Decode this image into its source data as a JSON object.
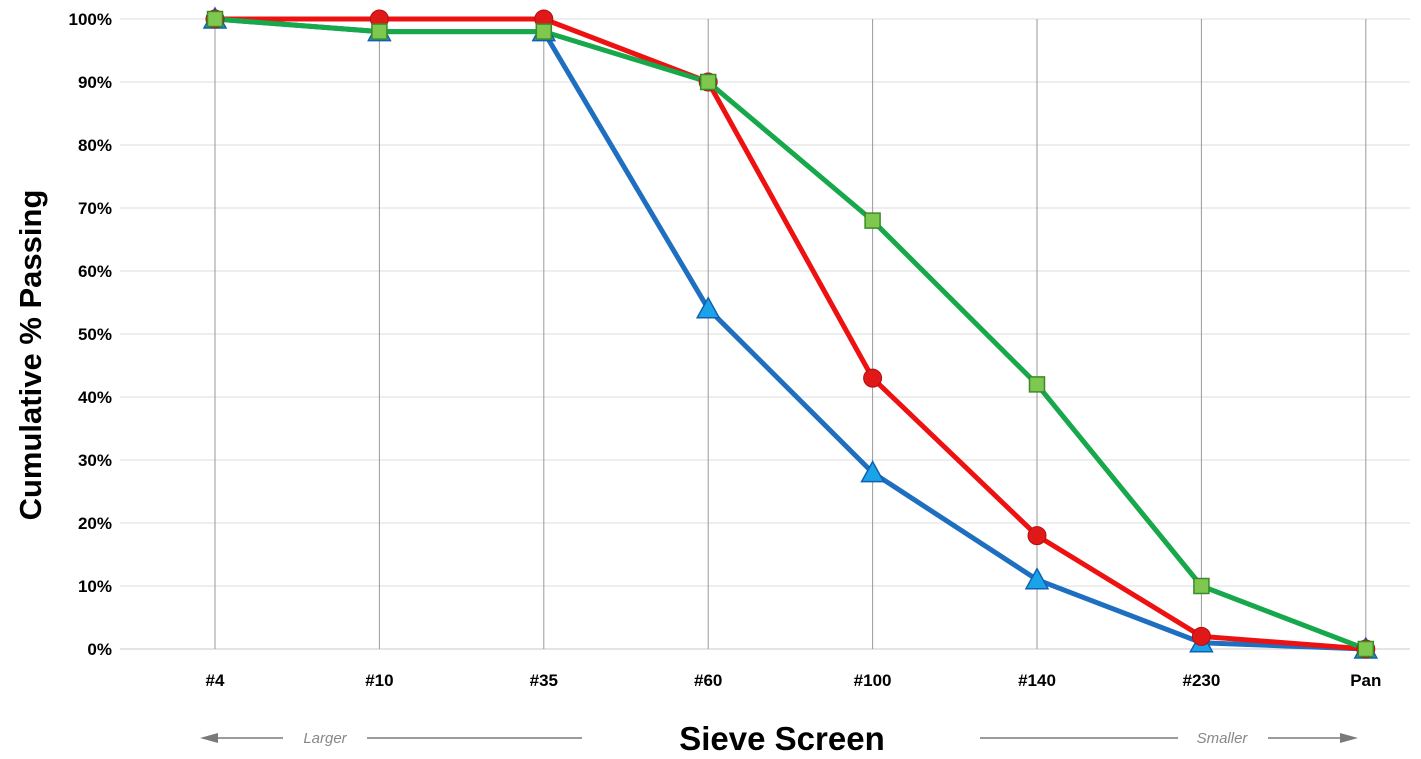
{
  "chart_data": {
    "type": "line",
    "title": "",
    "xlabel": "Sieve Screen",
    "ylabel": "Cumulative % Passing",
    "categories": [
      "#4",
      "#10",
      "#35",
      "#60",
      "#100",
      "#140",
      "#230",
      "Pan"
    ],
    "ylim": [
      0,
      100
    ],
    "yticks": [
      0,
      10,
      20,
      30,
      40,
      50,
      60,
      70,
      80,
      90,
      100
    ],
    "ytick_suffix": "%",
    "grid": "horizontal gridlines and vertical lines at each sieve",
    "legend": "none",
    "direction_hints": {
      "left": "Larger",
      "right": "Smaller"
    },
    "series": [
      {
        "marker": "triangle",
        "color": "#1e6fc0",
        "marker_color": "#1aa3e8",
        "values": [
          100,
          98,
          98,
          54,
          28,
          11,
          1,
          0
        ]
      },
      {
        "marker": "circle",
        "color": "#ee1111",
        "marker_color": "#e01818",
        "values": [
          100,
          100,
          100,
          90,
          43,
          18,
          2,
          0
        ]
      },
      {
        "marker": "square",
        "color": "#16a84a",
        "marker_color": "#7ec850",
        "values": [
          100,
          98,
          98,
          90,
          68,
          42,
          10,
          0
        ]
      }
    ]
  }
}
